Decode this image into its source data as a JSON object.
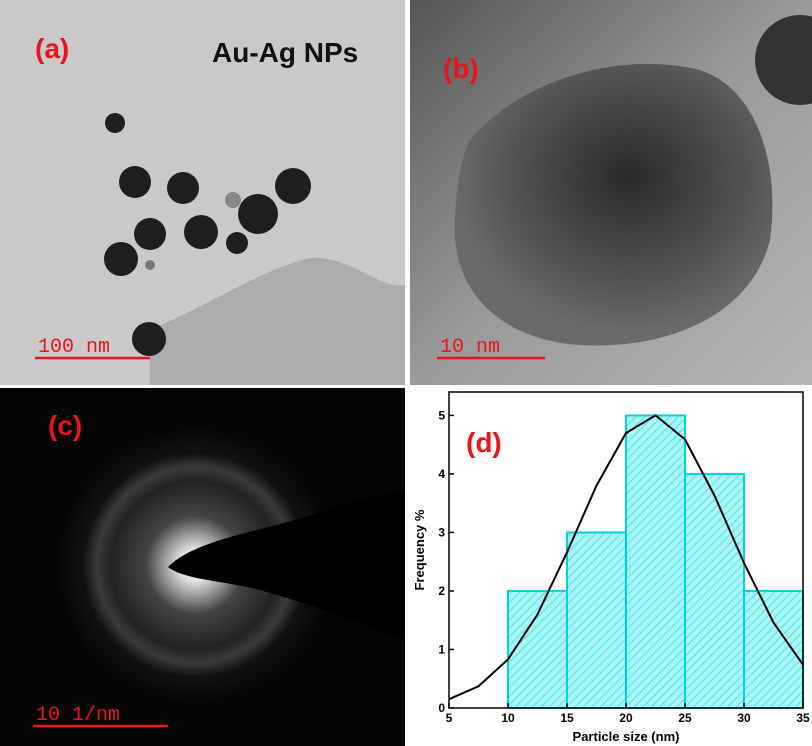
{
  "panels": {
    "a": {
      "label": "(a)",
      "title": "Au-Ag NPs",
      "scale": "100 nm"
    },
    "b": {
      "label": "(b)",
      "scale": "10 nm"
    },
    "c": {
      "label": "(c)",
      "scale": "10 1/nm"
    },
    "d": {
      "label": "(d)"
    }
  },
  "chart_data": {
    "type": "histogram",
    "xlabel": "Particle size (nm)",
    "ylabel": "Frequency %",
    "bins": [
      10,
      15,
      20,
      25,
      30,
      35
    ],
    "values": [
      2,
      3,
      5,
      4,
      2
    ],
    "color": "#8ff3f3",
    "edgecolor": "#00d4dc",
    "xlim": [
      5,
      35
    ],
    "xticks": [
      5,
      10,
      15,
      20,
      25,
      30,
      35
    ],
    "ylim": [
      0,
      5.4
    ],
    "yticks": [
      0,
      1,
      2,
      3,
      4,
      5
    ],
    "fit": {
      "color": "#000000",
      "x": [
        5,
        7.5,
        10,
        12.5,
        15,
        17.5,
        20,
        22.5,
        25,
        27.5,
        30,
        32.5,
        35
      ],
      "values": [
        0.15,
        0.37,
        0.83,
        1.6,
        2.66,
        3.8,
        4.7,
        5.0,
        4.59,
        3.63,
        2.48,
        1.46,
        0.74
      ]
    }
  }
}
